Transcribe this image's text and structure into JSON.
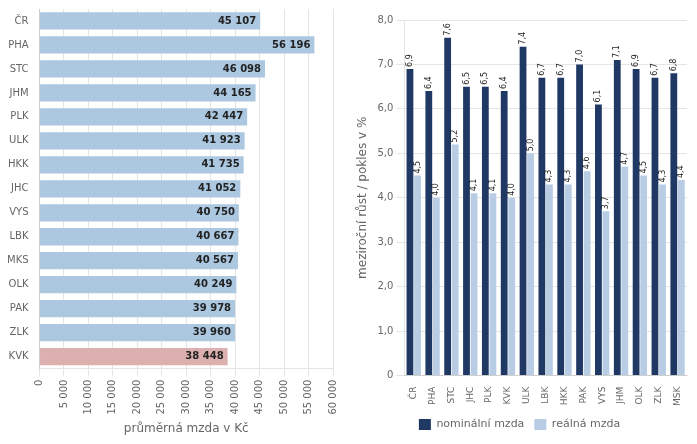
{
  "chart_data": [
    {
      "type": "bar",
      "orientation": "horizontal",
      "xlabel": "průměrná mzda v Kč",
      "categories": [
        "ČR",
        "PHA",
        "STC",
        "JHM",
        "PLK",
        "ULK",
        "HKK",
        "JHC",
        "VYS",
        "LBK",
        "MKS",
        "OLK",
        "PAK",
        "ZLK",
        "KVK"
      ],
      "values": [
        45107,
        56196,
        46098,
        44165,
        42447,
        41923,
        41735,
        41052,
        40750,
        40667,
        40567,
        40249,
        39978,
        39960,
        38448
      ],
      "value_labels": [
        "45 107",
        "56 196",
        "46 098",
        "44 165",
        "42 447",
        "41 923",
        "41 735",
        "41 052",
        "40 750",
        "40 667",
        "40 567",
        "40 249",
        "39 978",
        "39 960",
        "38 448"
      ],
      "colors": [
        "#abc8e0",
        "#abc8e0",
        "#abc8e0",
        "#abc8e0",
        "#abc8e0",
        "#abc8e0",
        "#abc8e0",
        "#abc8e0",
        "#abc8e0",
        "#abc8e0",
        "#abc8e0",
        "#abc8e0",
        "#abc8e0",
        "#abc8e0",
        "#ddb0b0"
      ],
      "xlim": [
        0,
        60000
      ],
      "xticks": [
        0,
        {
          "value": 5000,
          "label": "5 000"
        },
        {
          "value": 10000,
          "label": "10 000"
        },
        {
          "value": 15000,
          "label": "15 000"
        },
        {
          "value": 20000,
          "label": "20 000"
        },
        {
          "value": 25000,
          "label": "25 000"
        },
        {
          "value": 30000,
          "label": "30 000"
        },
        {
          "value": 35000,
          "label": "35 000"
        },
        {
          "value": 40000,
          "label": "40 000"
        },
        {
          "value": 45000,
          "label": "45 000"
        },
        {
          "value": 50000,
          "label": "50 000"
        },
        {
          "value": 55000,
          "label": "55 000"
        },
        {
          "value": 60000,
          "label": "60 000"
        }
      ],
      "grid": true,
      "data_labels": true
    },
    {
      "type": "bar",
      "ylabel": "meziroční růst / pokles v %",
      "categories": [
        "ČR",
        "PHA",
        "STC",
        "JHC",
        "PLK",
        "KVK",
        "ULK",
        "LBK",
        "HKK",
        "PAK",
        "VYS",
        "JHM",
        "OLK",
        "ZLK",
        "MSK"
      ],
      "series": [
        {
          "name": "nominální mzda",
          "color": "#1f3864",
          "values": [
            6.9,
            6.4,
            7.6,
            6.5,
            6.5,
            6.4,
            7.4,
            6.7,
            6.7,
            7.0,
            6.1,
            7.1,
            6.9,
            6.7,
            6.8
          ],
          "value_labels": [
            "6,9",
            "6,4",
            "7,6",
            "6,5",
            "6,5",
            "6,4",
            "7,4",
            "6,7",
            "6,7",
            "7,0",
            "6,1",
            "7,1",
            "6,9",
            "6,7",
            "6,8"
          ]
        },
        {
          "name": "reálná mzda",
          "color": "#b8cce4",
          "values": [
            4.5,
            4.0,
            5.2,
            4.1,
            4.1,
            4.0,
            5.0,
            4.3,
            4.3,
            4.6,
            3.7,
            4.7,
            4.5,
            4.3,
            4.4
          ],
          "value_labels": [
            "4,5",
            "4,0",
            "5,2",
            "4,1",
            "4,1",
            "4,0",
            "5,0",
            "4,3",
            "4,3",
            "4,6",
            "3,7",
            "4,7",
            "4,5",
            "4,3",
            "4,4"
          ]
        }
      ],
      "ylim": [
        0,
        8.0
      ],
      "yticks": [
        0,
        {
          "value": 1.0,
          "label": "1,0"
        },
        {
          "value": 2.0,
          "label": "2,0"
        },
        {
          "value": 3.0,
          "label": "3,0"
        },
        {
          "value": 4.0,
          "label": "4,0"
        },
        {
          "value": 5.0,
          "label": "5,0"
        },
        {
          "value": 6.0,
          "label": "6,0"
        },
        {
          "value": 7.0,
          "label": "7,0"
        },
        {
          "value": 8.0,
          "label": "8,0"
        }
      ],
      "grid": true,
      "legend": "bottom",
      "data_labels": true
    }
  ]
}
